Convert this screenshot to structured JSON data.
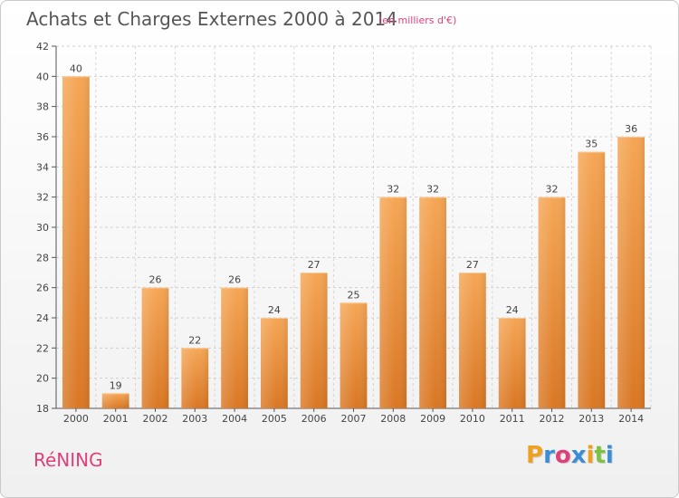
{
  "title": "Achats et Charges Externes 2000 à 2014",
  "subtitle": "(en milliers d'€)",
  "commune": "RéNING",
  "logo": {
    "letters": [
      "P",
      "r",
      "o",
      "x",
      "i",
      "t",
      "i"
    ],
    "colors": [
      "#f0a020",
      "#3a8ed8",
      "#e0407a",
      "#3a8ed8",
      "#f0a020",
      "#7cc242",
      "#3a8ed8"
    ]
  },
  "chart_data": {
    "type": "bar",
    "title": "Achats et Charges Externes 2000 à 2014",
    "subtitle": "(en milliers d'€)",
    "xlabel": "",
    "ylabel": "",
    "categories": [
      "2000",
      "2001",
      "2002",
      "2003",
      "2004",
      "2005",
      "2006",
      "2007",
      "2008",
      "2009",
      "2010",
      "2011",
      "2012",
      "2013",
      "2014"
    ],
    "values": [
      40,
      19,
      26,
      22,
      26,
      24,
      27,
      25,
      32,
      32,
      27,
      24,
      32,
      35,
      36
    ],
    "ylim": [
      18,
      42
    ],
    "yticks": [
      18,
      20,
      22,
      24,
      26,
      28,
      30,
      32,
      34,
      36,
      38,
      40,
      42
    ],
    "grid": true,
    "bar_color_top": "#f5a655",
    "bar_color_bottom": "#d97724"
  }
}
